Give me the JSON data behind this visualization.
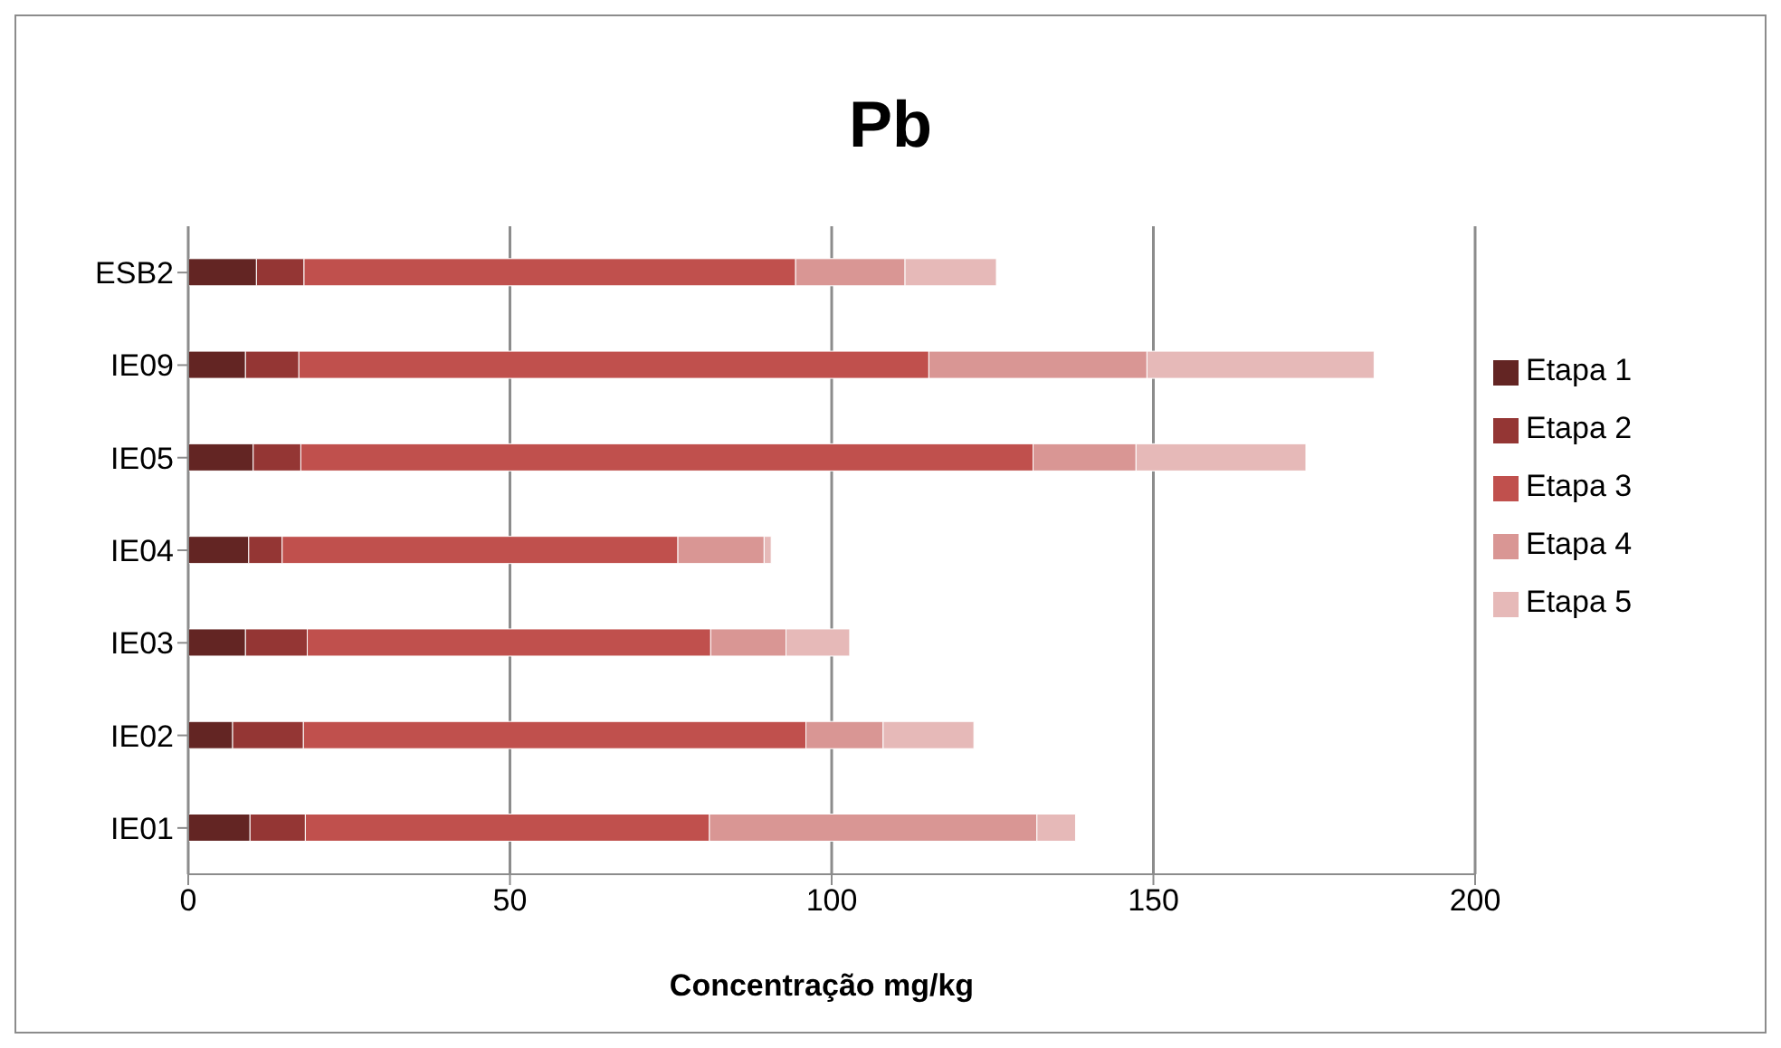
{
  "chart_data": {
    "type": "bar",
    "orientation": "horizontal",
    "stacked": true,
    "title": "Pb",
    "xlabel": "Concentração mg/kg",
    "categories": [
      "ESB2",
      "IE09",
      "IE05",
      "IE04",
      "IE03",
      "IE02",
      "IE01"
    ],
    "series": [
      {
        "name": "Etapa 1",
        "color": "#632523",
        "values": [
          10.6,
          8.9,
          10.1,
          9.4,
          8.9,
          6.9,
          9.6
        ]
      },
      {
        "name": "Etapa 2",
        "color": "#943634",
        "values": [
          7.4,
          8.3,
          7.4,
          5.2,
          9.6,
          11.0,
          8.6
        ]
      },
      {
        "name": "Etapa 3",
        "color": "#c0504d",
        "values": [
          76.4,
          97.9,
          113.8,
          61.5,
          62.7,
          78.1,
          62.8
        ]
      },
      {
        "name": "Etapa 4",
        "color": "#d99694",
        "values": [
          17.0,
          33.9,
          16.0,
          13.4,
          11.7,
          12.0,
          50.9
        ]
      },
      {
        "name": "Etapa 5",
        "color": "#e6b9b8",
        "values": [
          14.2,
          35.3,
          26.4,
          1.1,
          9.9,
          14.1,
          6.0
        ]
      }
    ],
    "xlim": [
      0,
      200
    ],
    "xticks": [
      0,
      50,
      100,
      150,
      200
    ],
    "grid": "x",
    "legend": "right"
  }
}
